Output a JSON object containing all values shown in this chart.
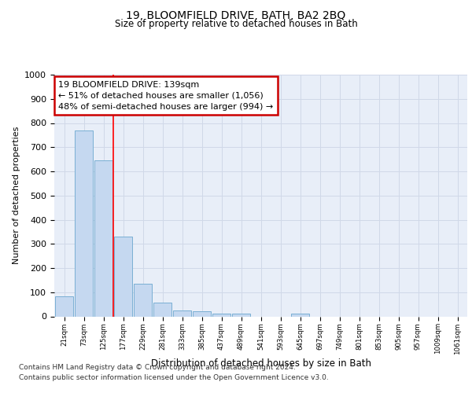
{
  "title": "19, BLOOMFIELD DRIVE, BATH, BA2 2BQ",
  "subtitle": "Size of property relative to detached houses in Bath",
  "xlabel": "Distribution of detached houses by size in Bath",
  "ylabel": "Number of detached properties",
  "footnote1": "Contains HM Land Registry data © Crown copyright and database right 2024.",
  "footnote2": "Contains public sector information licensed under the Open Government Licence v3.0.",
  "annotation_title": "19 BLOOMFIELD DRIVE: 139sqm",
  "annotation_line1": "← 51% of detached houses are smaller (1,056)",
  "annotation_line2": "48% of semi-detached houses are larger (994) →",
  "bar_values": [
    83,
    770,
    645,
    330,
    135,
    58,
    25,
    20,
    12,
    10,
    0,
    0,
    12,
    0,
    0,
    0,
    0,
    0,
    0,
    0,
    0
  ],
  "bin_labels": [
    "21sqm",
    "73sqm",
    "125sqm",
    "177sqm",
    "229sqm",
    "281sqm",
    "333sqm",
    "385sqm",
    "437sqm",
    "489sqm",
    "541sqm",
    "593sqm",
    "645sqm",
    "697sqm",
    "749sqm",
    "801sqm",
    "853sqm",
    "905sqm",
    "957sqm",
    "1009sqm",
    "1061sqm"
  ],
  "bar_color": "#c5d8f0",
  "bar_edge_color": "#7aafd4",
  "bar_edge_width": 0.7,
  "grid_color": "#d0d8e8",
  "background_color": "#ffffff",
  "plot_bg_color": "#e8eef8",
  "annotation_box_color": "#ffffff",
  "annotation_box_edge": "#cc0000",
  "ylim": [
    0,
    1000
  ],
  "yticks": [
    0,
    100,
    200,
    300,
    400,
    500,
    600,
    700,
    800,
    900,
    1000
  ],
  "red_line_x": 2.5
}
